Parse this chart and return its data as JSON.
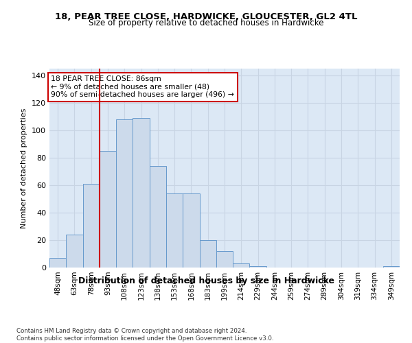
{
  "title": "18, PEAR TREE CLOSE, HARDWICKE, GLOUCESTER, GL2 4TL",
  "subtitle": "Size of property relative to detached houses in Hardwicke",
  "xlabel_bottom": "Distribution of detached houses by size in Hardwicke",
  "ylabel": "Number of detached properties",
  "bar_labels": [
    "48sqm",
    "63sqm",
    "78sqm",
    "93sqm",
    "108sqm",
    "123sqm",
    "138sqm",
    "153sqm",
    "168sqm",
    "183sqm",
    "199sqm",
    "214sqm",
    "229sqm",
    "244sqm",
    "259sqm",
    "274sqm",
    "289sqm",
    "304sqm",
    "319sqm",
    "334sqm",
    "349sqm"
  ],
  "bar_values": [
    7,
    24,
    61,
    85,
    108,
    109,
    74,
    54,
    54,
    20,
    12,
    3,
    1,
    0,
    0,
    0,
    0,
    0,
    0,
    0,
    1
  ],
  "bar_color": "#ccdaeb",
  "bar_edge_color": "#6699cc",
  "red_line_after_bin": 2,
  "red_line_color": "#cc0000",
  "annotation_text": "18 PEAR TREE CLOSE: 86sqm\n← 9% of detached houses are smaller (48)\n90% of semi-detached houses are larger (496) →",
  "annotation_box_color": "white",
  "annotation_box_edge_color": "#cc0000",
  "ylim": [
    0,
    145
  ],
  "yticks": [
    0,
    20,
    40,
    60,
    80,
    100,
    120,
    140
  ],
  "grid_color": "#c8d4e3",
  "background_color": "#dce8f5",
  "footer_line1": "Contains HM Land Registry data © Crown copyright and database right 2024.",
  "footer_line2": "Contains public sector information licensed under the Open Government Licence v3.0."
}
